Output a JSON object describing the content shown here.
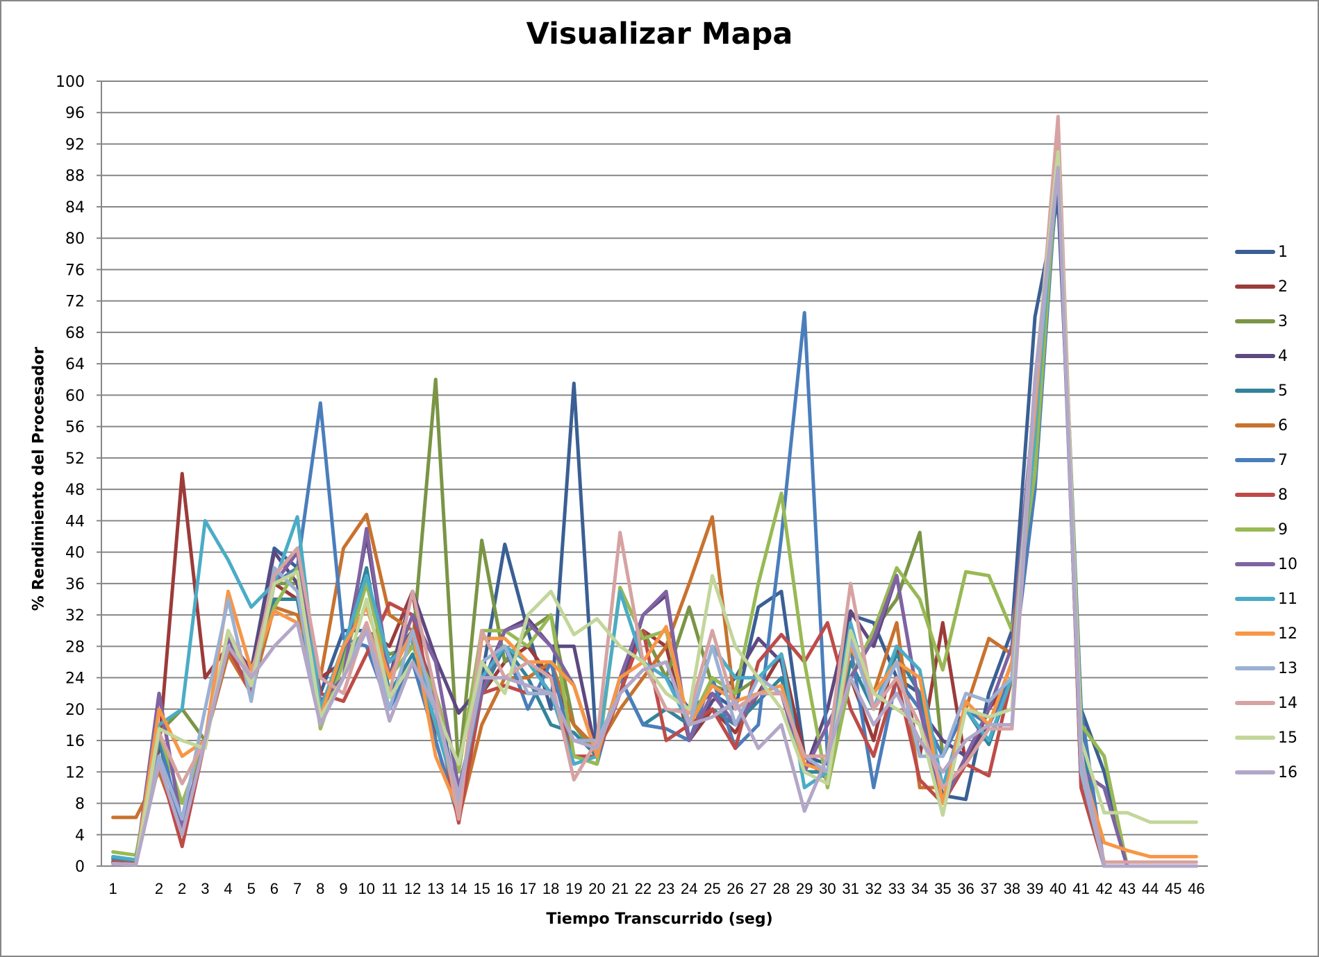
{
  "chart_data": {
    "type": "line",
    "title": "Visualizar Mapa",
    "xlabel": "Tiempo Transcurrido (seg)",
    "ylabel": "% Rendimiento del Procesador",
    "ylim": [
      0,
      100
    ],
    "yticks": [
      0,
      4,
      8,
      12,
      16,
      20,
      24,
      28,
      32,
      36,
      40,
      44,
      48,
      52,
      56,
      60,
      64,
      68,
      72,
      76,
      80,
      84,
      88,
      92,
      96,
      100
    ],
    "grid": true,
    "legend_position": "right",
    "categories": [
      "1",
      "",
      "2",
      "2",
      "3",
      "4",
      "5",
      "6",
      "7",
      "8",
      "9",
      "10",
      "11",
      "12",
      "13",
      "14",
      "15",
      "16",
      "17",
      "18",
      "19",
      "20",
      "21",
      "22",
      "23",
      "24",
      "25",
      "26",
      "27",
      "28",
      "29",
      "30",
      "31",
      "32",
      "33",
      "34",
      "35",
      "36",
      "37",
      "38",
      "39",
      "40",
      "41",
      "42",
      "43",
      "44",
      "45",
      "46"
    ],
    "series": [
      {
        "name": "1",
        "color": "#3A5F94",
        "values": [
          0.5,
          0.3,
          16,
          4,
          16,
          28,
          25,
          40.5,
          38,
          22,
          30,
          30,
          26,
          30,
          22,
          8,
          24,
          41,
          30,
          20,
          61.5,
          14,
          24,
          30,
          24,
          20,
          22,
          20,
          33,
          35,
          14,
          13,
          32,
          31,
          24,
          22,
          9,
          8.5,
          22,
          30,
          70,
          85,
          20,
          12,
          0,
          0,
          0,
          0
        ]
      },
      {
        "name": "2",
        "color": "#9B3B3A",
        "values": [
          0.5,
          0.3,
          15,
          50,
          24,
          28,
          24,
          36,
          34,
          24,
          26,
          30,
          28,
          35,
          16,
          6,
          22,
          26,
          28,
          24,
          18,
          14,
          24,
          30,
          28,
          16,
          20,
          17,
          22,
          27,
          14,
          11,
          24,
          16,
          28,
          14,
          31,
          13,
          20,
          24,
          60,
          93,
          10,
          0,
          0,
          0,
          0,
          0
        ]
      },
      {
        "name": "3",
        "color": "#7A9545",
        "values": [
          0.8,
          0.5,
          17,
          20,
          16,
          28,
          22,
          36,
          36,
          20,
          27,
          30,
          27,
          28,
          62,
          12,
          41.5,
          26,
          30,
          32,
          18,
          14,
          24,
          30,
          24,
          33,
          23,
          22,
          24,
          22,
          12,
          12,
          24,
          30,
          34,
          42.5,
          14,
          20,
          18,
          24,
          55,
          90,
          18,
          14,
          0,
          0,
          0,
          0
        ]
      },
      {
        "name": "4",
        "color": "#5E4880",
        "values": [
          0.3,
          0.2,
          22,
          5,
          16,
          29,
          25,
          40,
          36,
          20,
          26,
          42,
          24,
          35,
          26.5,
          19.5,
          23,
          30,
          31.5,
          28,
          28,
          14,
          22,
          32,
          34.5,
          16,
          21,
          24,
          29,
          26,
          12,
          20,
          32.5,
          28,
          37,
          20,
          16,
          14,
          18,
          26,
          55,
          88,
          12,
          10,
          0,
          0,
          0,
          0
        ]
      },
      {
        "name": "5",
        "color": "#31849B",
        "values": [
          0.5,
          0.3,
          16,
          5,
          16,
          27,
          23,
          34,
          34,
          18,
          27,
          38,
          22,
          27,
          18,
          10,
          22,
          28,
          24,
          18,
          17,
          14,
          24,
          18,
          20,
          18,
          20,
          18,
          21,
          24,
          12,
          12,
          26,
          20,
          27,
          22,
          10,
          20,
          15.5,
          24,
          55,
          90,
          17,
          0,
          0,
          0,
          0,
          0
        ]
      },
      {
        "name": "6",
        "color": "#C8722E",
        "values": [
          6.2,
          6.2,
          12,
          4,
          16,
          27,
          22,
          33,
          32,
          24,
          40.5,
          44.8,
          32,
          30,
          20,
          6,
          18,
          24,
          24,
          26,
          18,
          15,
          20,
          24,
          28,
          36,
          44.5,
          20,
          22,
          22,
          14,
          14,
          28,
          22,
          31,
          10,
          10,
          20,
          29,
          27,
          58,
          92,
          12,
          0,
          0,
          0,
          0,
          0
        ]
      },
      {
        "name": "7",
        "color": "#4A7EBB",
        "values": [
          1,
          0.8,
          17,
          4,
          16,
          28,
          22,
          36,
          38,
          59,
          29,
          28,
          20,
          26,
          16,
          6,
          24,
          28,
          20,
          26,
          14,
          13,
          24,
          18,
          17.5,
          16,
          24,
          15,
          18,
          42,
          70.5,
          14,
          28,
          10,
          24,
          20,
          14,
          20,
          18,
          24,
          48,
          90,
          20,
          0,
          0,
          0,
          0,
          0
        ]
      },
      {
        "name": "8",
        "color": "#BE4B48",
        "values": [
          0.5,
          0.3,
          13,
          2.5,
          16,
          28,
          22,
          36,
          40,
          22,
          21,
          27,
          33.5,
          32,
          20,
          5.5,
          22,
          23,
          22,
          22,
          14,
          14,
          22,
          30,
          16,
          18,
          20,
          15,
          26,
          29.5,
          26,
          31,
          20,
          14,
          24,
          11,
          8,
          13,
          11.5,
          24,
          60,
          92,
          10,
          0,
          0,
          0,
          0,
          0
        ]
      },
      {
        "name": "9",
        "color": "#98B954",
        "values": [
          1.8,
          1.4,
          17,
          8,
          16,
          28,
          24,
          33,
          38,
          17.5,
          26,
          36,
          24,
          28,
          22,
          12,
          30,
          30,
          28,
          32,
          14,
          13,
          35.5,
          29,
          30,
          18,
          24,
          22,
          36,
          47.5,
          26,
          10,
          24,
          30,
          38,
          34,
          25,
          37.5,
          37,
          30,
          50,
          91,
          18,
          14,
          0,
          0,
          0,
          0
        ]
      },
      {
        "name": "10",
        "color": "#7F63A2",
        "values": [
          0.3,
          0.2,
          22,
          5,
          16,
          29,
          24,
          36,
          40,
          21,
          24,
          43,
          24,
          32,
          26,
          10,
          22,
          30,
          31,
          28,
          23,
          14,
          24,
          32,
          35,
          16,
          22,
          18,
          22,
          22,
          12,
          18,
          24,
          29,
          37,
          20,
          8,
          14,
          20,
          28,
          60,
          92,
          12,
          10,
          0,
          0,
          0,
          0
        ]
      },
      {
        "name": "11",
        "color": "#4BACC6",
        "values": [
          1.2,
          0.8,
          18,
          20,
          44,
          39,
          33,
          36,
          44.5,
          20,
          28,
          37,
          26,
          29,
          18,
          8,
          24,
          28,
          26,
          22,
          13,
          14,
          35,
          26,
          24,
          18,
          28,
          24,
          24,
          27,
          10,
          12,
          31,
          20,
          28,
          25,
          10,
          20,
          16,
          24,
          55,
          92,
          12,
          0,
          0,
          0,
          0,
          0
        ]
      },
      {
        "name": "12",
        "color": "#F79646",
        "values": [
          0.3,
          0.2,
          20,
          14,
          16,
          35,
          25,
          32.5,
          31,
          19,
          28,
          33,
          24,
          30,
          14,
          7,
          29,
          29,
          26,
          26,
          23,
          14,
          24,
          26,
          30.5,
          18,
          23,
          21,
          22,
          23,
          13,
          12,
          28,
          22,
          26,
          24,
          8,
          21,
          18,
          26,
          58,
          92,
          13,
          3,
          2,
          1.2,
          1.2,
          1.2
        ]
      },
      {
        "name": "13",
        "color": "#9BB1D4",
        "values": [
          0.3,
          0.2,
          14,
          6,
          20,
          34,
          21,
          38,
          35,
          18,
          24,
          31,
          20,
          30,
          20,
          8,
          26,
          28,
          22,
          22,
          16,
          16,
          22,
          25,
          26,
          18,
          28,
          18,
          24,
          22,
          14,
          12,
          29,
          20,
          26,
          14,
          14,
          22,
          21,
          24,
          60,
          89,
          12,
          0,
          0,
          0,
          0,
          0
        ]
      },
      {
        "name": "14",
        "color": "#D6A3A2",
        "values": [
          0.3,
          0.2,
          17,
          10.5,
          16,
          30,
          24,
          37,
          40.5,
          24,
          22,
          31,
          22,
          35,
          22,
          6,
          30,
          24,
          26,
          24,
          11,
          16,
          42.5,
          26,
          20,
          19.5,
          30,
          20,
          22,
          22,
          14,
          14,
          36,
          20,
          24,
          18,
          10,
          13,
          17.5,
          17.5,
          60,
          95.5,
          14,
          0.5,
          0.5,
          0.5,
          0.5,
          0.5
        ]
      },
      {
        "name": "15",
        "color": "#C3D69B",
        "values": [
          0.3,
          0.2,
          17.5,
          16,
          15,
          30,
          23,
          36,
          37.5,
          19,
          24,
          34,
          21.5,
          26,
          20,
          13,
          26,
          22,
          32,
          35,
          29.5,
          31.5,
          28,
          26,
          22,
          20,
          37,
          28,
          24,
          20,
          12,
          10.5,
          30,
          22,
          20,
          18,
          6.5,
          20,
          19,
          20,
          62,
          91,
          16,
          6.8,
          6.8,
          5.6,
          5.6,
          5.6
        ]
      },
      {
        "name": "16",
        "color": "#B3A7C8",
        "values": [
          0.3,
          0.2,
          13,
          4,
          16,
          28,
          24,
          28,
          31,
          18,
          24,
          30,
          18.5,
          26,
          20,
          9,
          24,
          24,
          23,
          22,
          16,
          15,
          22,
          25,
          26,
          18,
          19,
          21,
          15,
          18,
          7,
          14,
          24,
          18,
          22,
          16,
          12,
          16,
          18,
          18,
          62,
          89,
          14,
          0,
          0,
          0,
          0,
          0
        ]
      }
    ]
  }
}
